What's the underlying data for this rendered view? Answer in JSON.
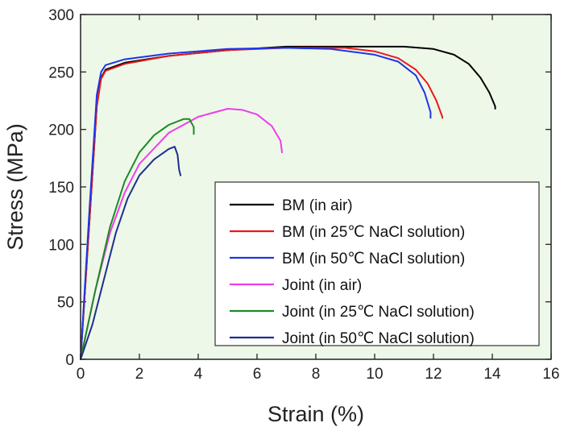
{
  "chart_data": {
    "type": "line",
    "title": "",
    "xlabel": "Strain (%)",
    "ylabel": "Stress (MPa)",
    "xlim": [
      0,
      16
    ],
    "ylim": [
      0,
      300
    ],
    "xticks": [
      "0",
      "2",
      "4",
      "6",
      "8",
      "10",
      "12",
      "14",
      "16"
    ],
    "yticks": [
      "0",
      "50",
      "100",
      "150",
      "200",
      "250",
      "300"
    ],
    "plot_background": "#eef8e8",
    "legend_position": "bottom-right",
    "series": [
      {
        "name": "BM (in air)",
        "color": "#000000",
        "points": [
          [
            0,
            0
          ],
          [
            0.3,
            120
          ],
          [
            0.55,
            220
          ],
          [
            0.7,
            245
          ],
          [
            0.85,
            252
          ],
          [
            1.5,
            258
          ],
          [
            3,
            264
          ],
          [
            5,
            269
          ],
          [
            7,
            272
          ],
          [
            9,
            272
          ],
          [
            11,
            272
          ],
          [
            12,
            270
          ],
          [
            12.7,
            265
          ],
          [
            13.2,
            257
          ],
          [
            13.6,
            245
          ],
          [
            13.9,
            232
          ],
          [
            14.1,
            220
          ],
          [
            14.1,
            218
          ]
        ]
      },
      {
        "name": "BM (in 25℃ NaCl solution)",
        "color": "#e8191e",
        "points": [
          [
            0,
            0
          ],
          [
            0.3,
            120
          ],
          [
            0.55,
            220
          ],
          [
            0.7,
            244
          ],
          [
            0.85,
            251
          ],
          [
            1.5,
            257
          ],
          [
            3,
            264
          ],
          [
            5,
            269
          ],
          [
            7,
            271
          ],
          [
            9,
            271
          ],
          [
            10,
            268
          ],
          [
            10.8,
            262
          ],
          [
            11.4,
            252
          ],
          [
            11.8,
            240
          ],
          [
            12.1,
            225
          ],
          [
            12.3,
            211
          ],
          [
            12.3,
            210
          ]
        ]
      },
      {
        "name": "BM (in 50℃ NaCl solution)",
        "color": "#1f35e6",
        "points": [
          [
            0,
            0
          ],
          [
            0.3,
            130
          ],
          [
            0.55,
            230
          ],
          [
            0.7,
            250
          ],
          [
            0.85,
            256
          ],
          [
            1.5,
            261
          ],
          [
            3,
            266
          ],
          [
            5,
            270
          ],
          [
            7,
            271
          ],
          [
            8.5,
            270
          ],
          [
            10,
            265
          ],
          [
            10.8,
            259
          ],
          [
            11.4,
            247
          ],
          [
            11.7,
            232
          ],
          [
            11.9,
            215
          ],
          [
            11.9,
            210
          ]
        ]
      },
      {
        "name": "Joint (in air)",
        "color": "#ee3ded",
        "points": [
          [
            0,
            0
          ],
          [
            0.5,
            60
          ],
          [
            1,
            110
          ],
          [
            1.5,
            145
          ],
          [
            2,
            170
          ],
          [
            3,
            197
          ],
          [
            4,
            211
          ],
          [
            5,
            218
          ],
          [
            5.5,
            217
          ],
          [
            6,
            213
          ],
          [
            6.5,
            203
          ],
          [
            6.8,
            190
          ],
          [
            6.85,
            180
          ]
        ]
      },
      {
        "name": "Joint (in 25℃ NaCl solution)",
        "color": "#1c8a25",
        "points": [
          [
            0,
            0
          ],
          [
            0.5,
            60
          ],
          [
            1,
            115
          ],
          [
            1.5,
            155
          ],
          [
            2,
            180
          ],
          [
            2.5,
            195
          ],
          [
            3,
            204
          ],
          [
            3.5,
            209
          ],
          [
            3.7,
            209
          ],
          [
            3.85,
            202
          ],
          [
            3.85,
            196
          ]
        ]
      },
      {
        "name": "Joint (in 50℃ NaCl solution)",
        "color": "#1f2e8e",
        "points": [
          [
            0,
            0
          ],
          [
            0.4,
            30
          ],
          [
            0.8,
            70
          ],
          [
            1.2,
            110
          ],
          [
            1.6,
            140
          ],
          [
            2,
            160
          ],
          [
            2.5,
            174
          ],
          [
            3,
            183
          ],
          [
            3.2,
            185
          ],
          [
            3.3,
            178
          ],
          [
            3.35,
            165
          ],
          [
            3.4,
            160
          ]
        ]
      }
    ]
  }
}
